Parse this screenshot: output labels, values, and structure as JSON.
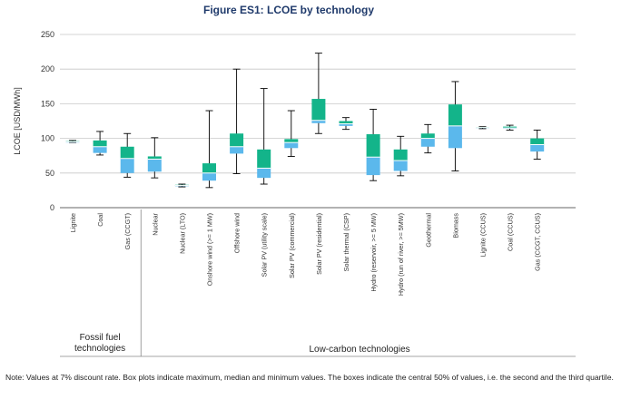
{
  "chart_data": {
    "type": "box",
    "title": "Figure ES1: LCOE by technology",
    "ylabel": "LCOE [USD/MWh]",
    "xlabel": "",
    "ylim": [
      0,
      250
    ],
    "yticks": [
      0,
      50,
      100,
      150,
      200,
      250
    ],
    "grid": true,
    "colors": {
      "lower_box": "#5bb8ec",
      "upper_box": "#13b48a",
      "median": "#ffffff",
      "whisker": "#000000",
      "title": "#1f3a6b"
    },
    "groups": [
      {
        "name": "Fossil fuel\ntechnologies",
        "start": 0,
        "end": 2
      },
      {
        "name": "Low-carbon technologies",
        "start": 3,
        "end": 18
      }
    ],
    "categories": [
      "Lignite",
      "Coal",
      "Gas (CCGT)",
      "Nuclear",
      "Nuclear (LTO)",
      "Onshore wind (>= 1 MW)",
      "Offshore wind",
      "Solar PV (utility scale)",
      "Solar PV (commercial)",
      "Solar PV (residential)",
      "Solar thermal (CSP)",
      "Hydro (reservoir, >= 5 MW)",
      "Hydro (run of river, >= 5MW)",
      "Geothermal",
      "Biomass",
      "Lignite (CCUS)",
      "Coal (CCUS)",
      "Gas (CCGT, CCUS)"
    ],
    "series": [
      {
        "name": "Lignite",
        "min": 94,
        "q1": 94,
        "median": 95,
        "q3": 96,
        "max": 97
      },
      {
        "name": "Coal",
        "min": 76,
        "q1": 79,
        "median": 88,
        "q3": 97,
        "max": 110
      },
      {
        "name": "Gas (CCGT)",
        "min": 44,
        "q1": 50,
        "median": 71,
        "q3": 88,
        "max": 107
      },
      {
        "name": "Nuclear",
        "min": 43,
        "q1": 52,
        "median": 70,
        "q3": 74,
        "max": 101
      },
      {
        "name": "Nuclear (LTO)",
        "min": 30,
        "q1": 31,
        "median": 32,
        "q3": 33,
        "max": 34
      },
      {
        "name": "Onshore wind (>= 1 MW)",
        "min": 29,
        "q1": 39,
        "median": 50,
        "q3": 64,
        "max": 140
      },
      {
        "name": "Offshore wind",
        "min": 49,
        "q1": 78,
        "median": 88,
        "q3": 107,
        "max": 200
      },
      {
        "name": "Solar PV (utility scale)",
        "min": 34,
        "q1": 43,
        "median": 57,
        "q3": 84,
        "max": 172
      },
      {
        "name": "Solar PV (commercial)",
        "min": 74,
        "q1": 86,
        "median": 94,
        "q3": 99,
        "max": 140
      },
      {
        "name": "Solar PV (residential)",
        "min": 107,
        "q1": 122,
        "median": 126,
        "q3": 157,
        "max": 223
      },
      {
        "name": "Solar thermal (CSP)",
        "min": 113,
        "q1": 118,
        "median": 121,
        "q3": 125,
        "max": 130
      },
      {
        "name": "Hydro (reservoir, >= 5 MW)",
        "min": 39,
        "q1": 47,
        "median": 73,
        "q3": 106,
        "max": 142
      },
      {
        "name": "Hydro (run of river, >= 5MW)",
        "min": 46,
        "q1": 53,
        "median": 68,
        "q3": 84,
        "max": 103
      },
      {
        "name": "Geothermal",
        "min": 79,
        "q1": 88,
        "median": 100,
        "q3": 107,
        "max": 120
      },
      {
        "name": "Biomass",
        "min": 53,
        "q1": 86,
        "median": 118,
        "q3": 149,
        "max": 182
      },
      {
        "name": "Lignite (CCUS)",
        "min": 114,
        "q1": 115,
        "median": 116,
        "q3": 116,
        "max": 117
      },
      {
        "name": "Coal (CCUS)",
        "min": 112,
        "q1": 114,
        "median": 115,
        "q3": 117,
        "max": 119
      },
      {
        "name": "Gas (CCGT, CCUS)",
        "min": 70,
        "q1": 81,
        "median": 91,
        "q3": 100,
        "max": 112
      }
    ]
  },
  "note": "Note: Values at 7% discount rate. Box plots indicate maximum, median and minimum values. The boxes indicate the central 50% of values, i.e. the second and the third quartile."
}
